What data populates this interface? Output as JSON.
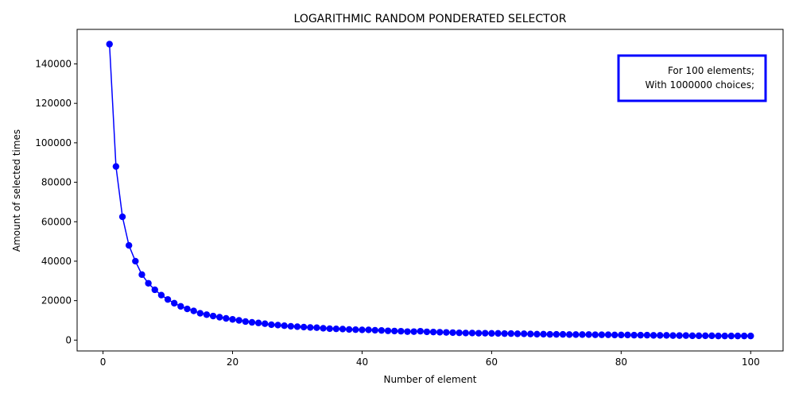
{
  "chart_data": {
    "type": "line",
    "title": "LOGARITHMIC RANDOM PONDERATED SELECTOR",
    "xlabel": "Number of element",
    "ylabel": "Amount of selected times",
    "xlim": [
      -4,
      105
    ],
    "ylim": [
      -5500,
      157500
    ],
    "xticks": [
      0,
      20,
      40,
      60,
      80,
      100
    ],
    "yticks": [
      0,
      20000,
      40000,
      60000,
      80000,
      100000,
      120000,
      140000
    ],
    "grid": false,
    "legend": "none",
    "annotation": {
      "lines": [
        "For 100 elements;",
        "With 1000000 choices;"
      ],
      "placement": "top-right"
    },
    "series": [
      {
        "color": "#0000ff",
        "marker": "circle",
        "x": [
          1,
          2,
          3,
          4,
          5,
          6,
          7,
          8,
          9,
          10,
          11,
          12,
          13,
          14,
          15,
          16,
          17,
          18,
          19,
          20,
          21,
          22,
          23,
          24,
          25,
          26,
          27,
          28,
          29,
          30,
          31,
          32,
          33,
          34,
          35,
          36,
          37,
          38,
          39,
          40,
          41,
          42,
          43,
          44,
          45,
          46,
          47,
          48,
          49,
          50,
          51,
          52,
          53,
          54,
          55,
          56,
          57,
          58,
          59,
          60,
          61,
          62,
          63,
          64,
          65,
          66,
          67,
          68,
          69,
          70,
          71,
          72,
          73,
          74,
          75,
          76,
          77,
          78,
          79,
          80,
          81,
          82,
          83,
          84,
          85,
          86,
          87,
          88,
          89,
          90,
          91,
          92,
          93,
          94,
          95,
          96,
          97,
          98,
          99,
          100
        ],
        "y": [
          150000,
          88000,
          62500,
          48000,
          40000,
          33200,
          28800,
          25500,
          22800,
          20600,
          18700,
          17100,
          15800,
          14800,
          13600,
          12900,
          12200,
          11600,
          11000,
          10500,
          10000,
          9400,
          9000,
          8700,
          8300,
          7800,
          7600,
          7300,
          7000,
          6800,
          6600,
          6400,
          6300,
          6000,
          5800,
          5700,
          5600,
          5400,
          5300,
          5200,
          5200,
          5000,
          4900,
          4700,
          4600,
          4500,
          4300,
          4300,
          4500,
          4200,
          4100,
          4000,
          3900,
          3800,
          3700,
          3600,
          3600,
          3500,
          3500,
          3400,
          3400,
          3300,
          3300,
          3200,
          3200,
          3100,
          3000,
          3000,
          2900,
          2900,
          2900,
          2800,
          2800,
          2800,
          2800,
          2700,
          2700,
          2700,
          2600,
          2600,
          2600,
          2500,
          2500,
          2500,
          2400,
          2400,
          2400,
          2300,
          2300,
          2300,
          2200,
          2200,
          2200,
          2200,
          2100,
          2100,
          2100,
          2100,
          2100,
          2100
        ]
      }
    ]
  }
}
